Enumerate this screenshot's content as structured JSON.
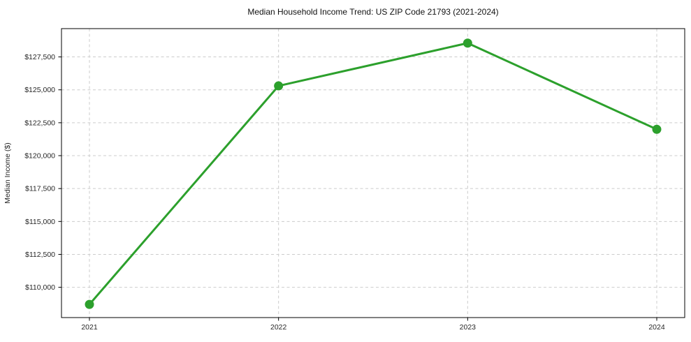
{
  "figure": {
    "background": "#ffffff",
    "plot_border_color": "#000000",
    "gridline_color": "#cccccc",
    "gridline_style": "dashed"
  },
  "chart_data": {
    "type": "line",
    "title": "Median Household Income Trend: US ZIP Code 21793 (2021-2024)",
    "xlabel": "",
    "ylabel": "Median Income ($)",
    "categories": [
      "2021",
      "2022",
      "2023",
      "2024"
    ],
    "series": [
      {
        "values": [
          108700,
          125300,
          128550,
          122000
        ],
        "color": "#2ca02c",
        "marker": "circle",
        "marker_size": 6.5,
        "line_width": 3
      }
    ],
    "yticks": [
      {
        "value": 110000,
        "label": "$110,000"
      },
      {
        "value": 112500,
        "label": "$112,500"
      },
      {
        "value": 115000,
        "label": "$115,000"
      },
      {
        "value": 117500,
        "label": "$117,500"
      },
      {
        "value": 120000,
        "label": "$120,000"
      },
      {
        "value": 122500,
        "label": "$122,500"
      },
      {
        "value": 125000,
        "label": "$125,000"
      },
      {
        "value": 127500,
        "label": "$127,500"
      }
    ],
    "ylim": [
      107700,
      129650
    ],
    "grid": true,
    "legend_position": "none"
  }
}
